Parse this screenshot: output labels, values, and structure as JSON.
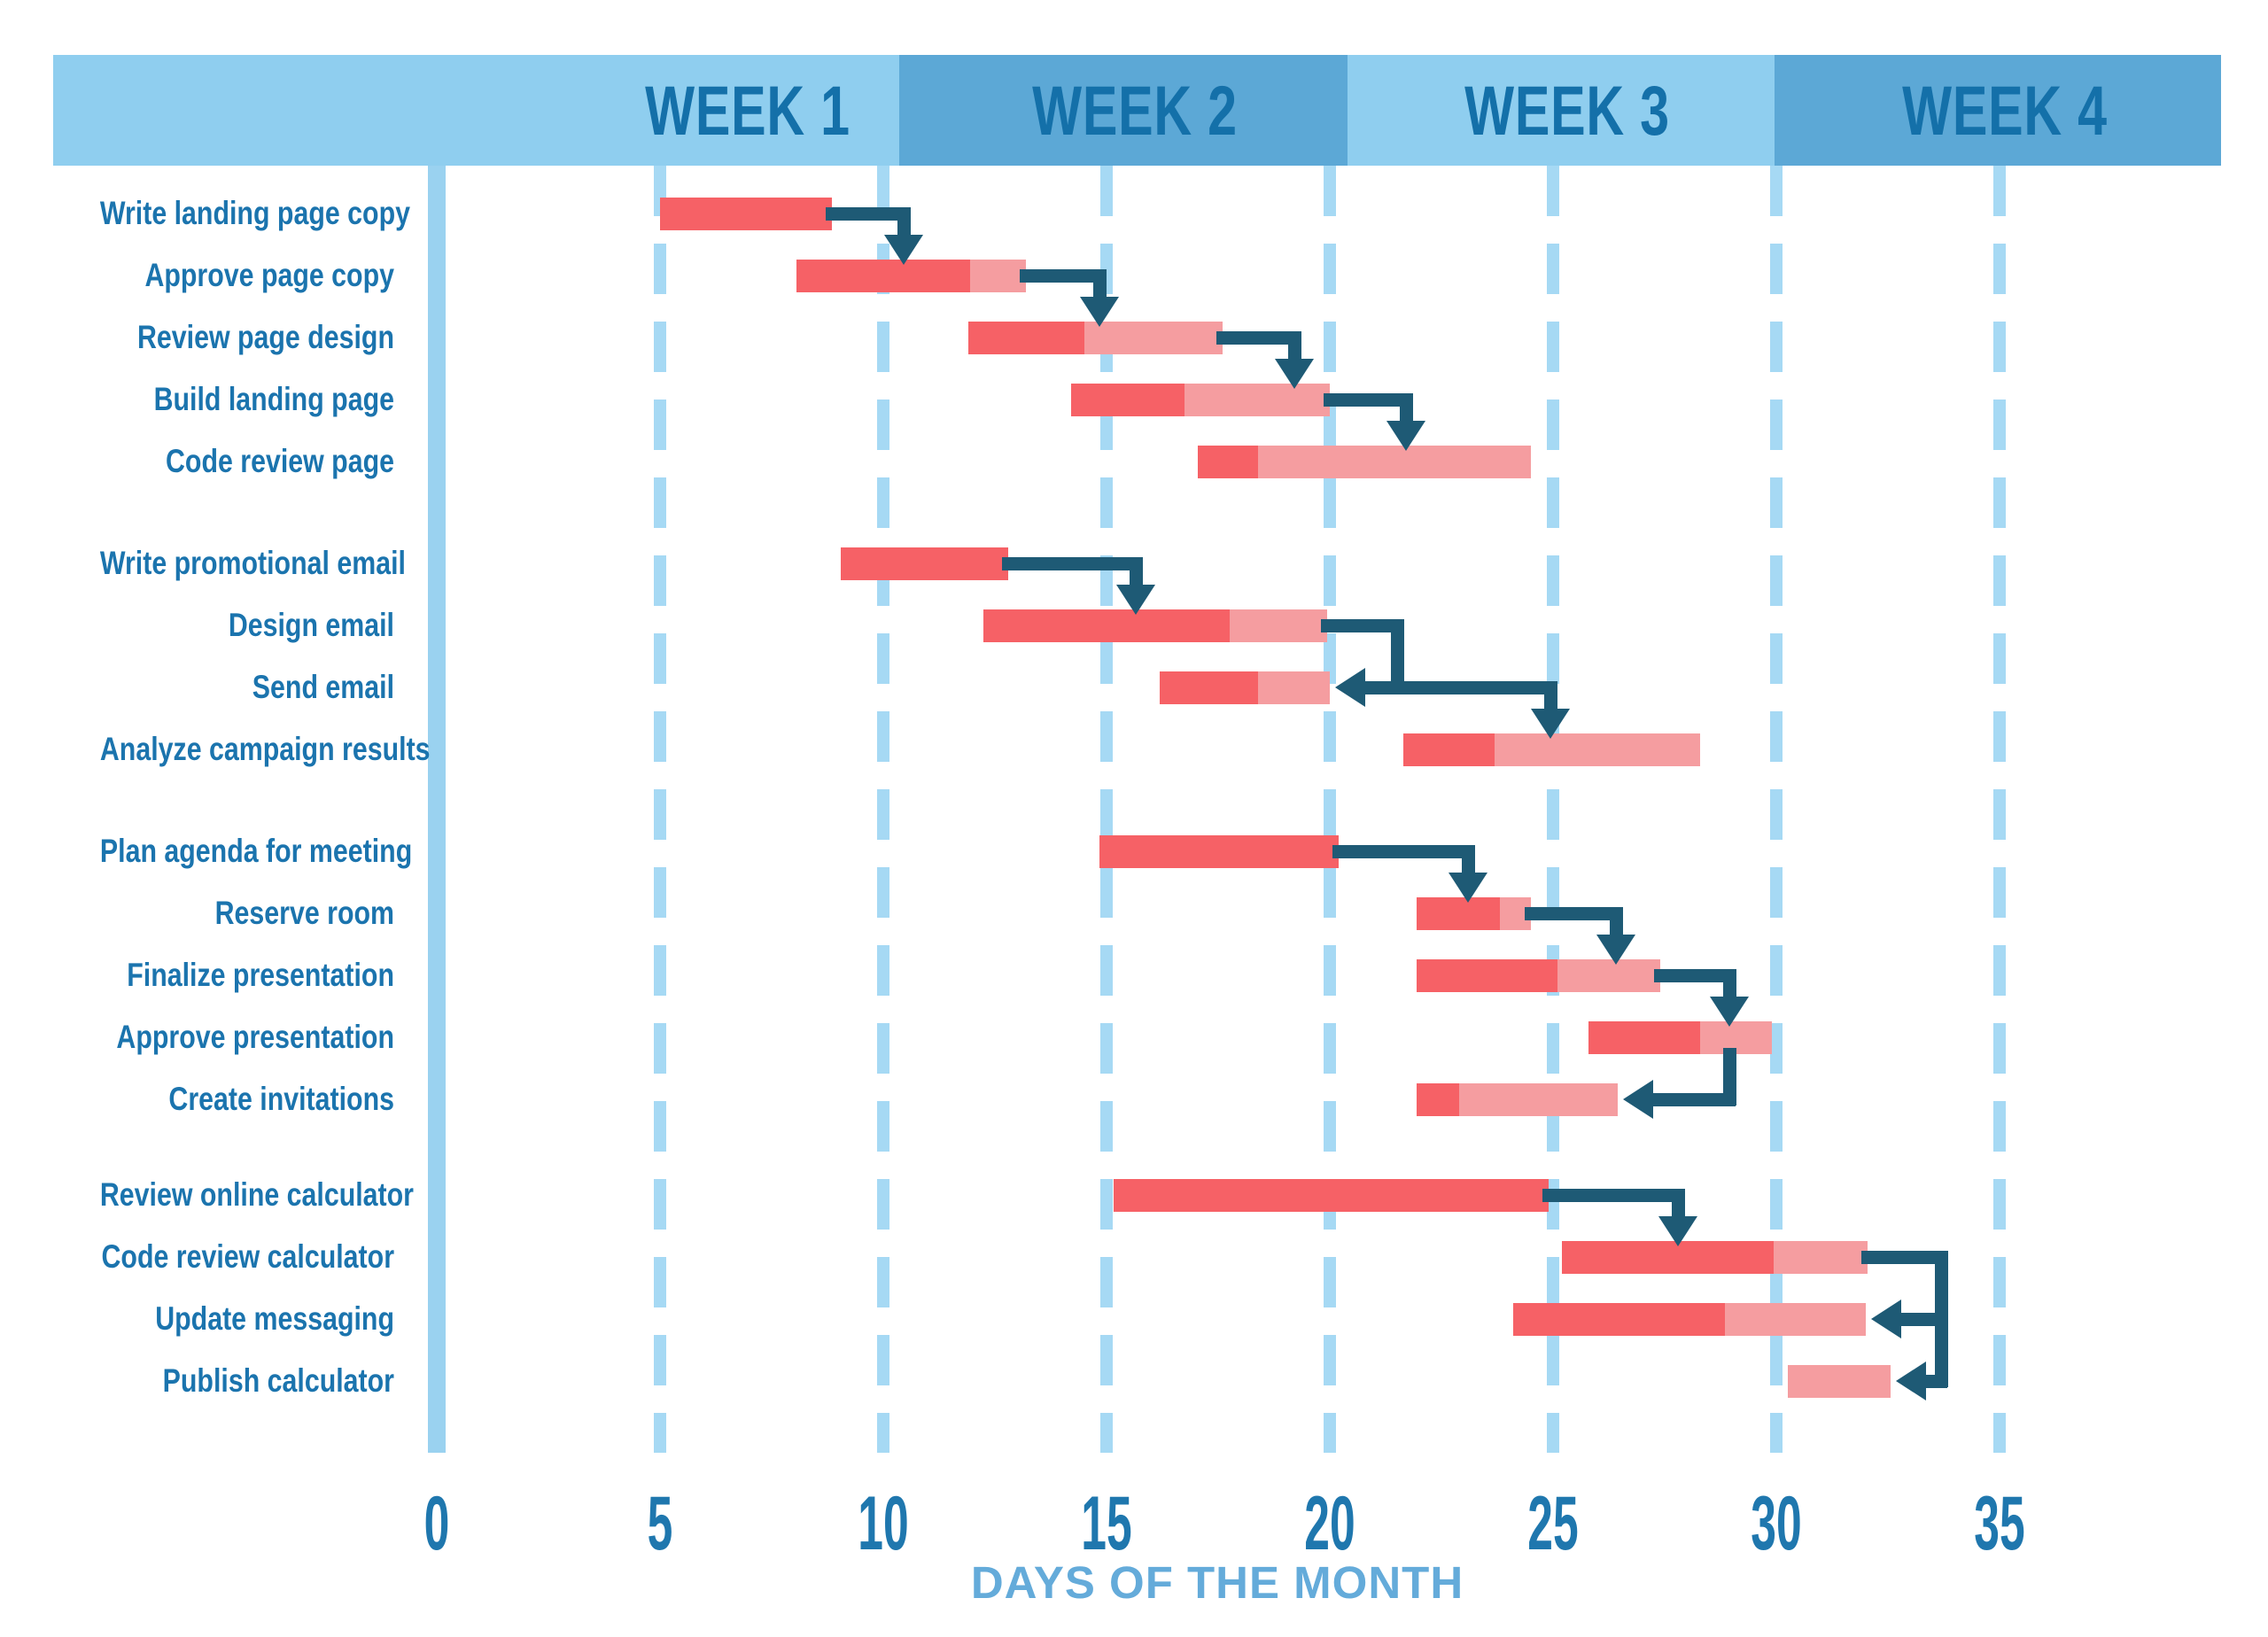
{
  "colors": {
    "background": "#ffffff",
    "header_band_light": "#8fceef",
    "header_band_dark": "#5ca8d6",
    "week_text": "#1470a9",
    "task_text": "#1b74ae",
    "tick_text": "#1f77ae",
    "caption_text": "#64abda",
    "grid_dash": "#a6d9f4",
    "grid_solid": "#9ad2f0",
    "bar_done": "#f66166",
    "bar_remaining": "#f59da0",
    "arrow": "#1e5a75"
  },
  "chart_data": {
    "type": "gantt",
    "title": "",
    "xlabel": "DAYS OF THE MONTH",
    "x_ticks": [
      0,
      5,
      10,
      15,
      20,
      25,
      30,
      35
    ],
    "xlim": [
      0,
      35
    ],
    "grid": "dashed-vertical",
    "week_headers": [
      {
        "label": "WEEK 1",
        "shade": "light"
      },
      {
        "label": "WEEK 2",
        "shade": "dark"
      },
      {
        "label": "WEEK 3",
        "shade": "light"
      },
      {
        "label": "WEEK 4",
        "shade": "dark"
      }
    ],
    "bar_semantics": {
      "solid_red": "completed portion",
      "light_pink": "remaining portion"
    },
    "tasks": [
      {
        "name": "Write landing page copy",
        "group": 0,
        "start": 5.0,
        "end": 8.85,
        "done": 8.85
      },
      {
        "name": "Approve page copy",
        "group": 0,
        "start": 8.05,
        "end": 13.2,
        "done": 11.95
      },
      {
        "name": "Review page design",
        "group": 0,
        "start": 11.9,
        "end": 17.6,
        "done": 14.5
      },
      {
        "name": "Build landing page",
        "group": 0,
        "start": 14.2,
        "end": 20.0,
        "done": 16.75
      },
      {
        "name": "Code review page",
        "group": 0,
        "start": 17.05,
        "end": 24.5,
        "done": 18.4
      },
      {
        "name": "Write promotional email",
        "group": 1,
        "start": 9.05,
        "end": 12.8,
        "done": 12.8
      },
      {
        "name": "Design email",
        "group": 1,
        "start": 12.25,
        "end": 19.95,
        "done": 17.75
      },
      {
        "name": "Send email",
        "group": 1,
        "start": 16.2,
        "end": 20.0,
        "done": 18.4
      },
      {
        "name": "Analyze campaign results",
        "group": 1,
        "start": 21.65,
        "end": 28.3,
        "done": 23.7
      },
      {
        "name": "Plan agenda for meeting",
        "group": 2,
        "start": 14.85,
        "end": 20.2,
        "done": 20.2
      },
      {
        "name": "Reserve room",
        "group": 2,
        "start": 21.95,
        "end": 24.5,
        "done": 23.8
      },
      {
        "name": "Finalize presentation",
        "group": 2,
        "start": 21.95,
        "end": 27.4,
        "done": 25.1
      },
      {
        "name": "Approve presentation",
        "group": 2,
        "start": 25.8,
        "end": 29.9,
        "done": 28.3
      },
      {
        "name": "Create invitations",
        "group": 2,
        "start": 21.95,
        "end": 26.45,
        "done": 22.9
      },
      {
        "name": "Review online calculator",
        "group": 3,
        "start": 15.15,
        "end": 24.9,
        "done": 24.9
      },
      {
        "name": "Code review calculator",
        "group": 3,
        "start": 25.2,
        "end": 32.05,
        "done": 29.95
      },
      {
        "name": "Update messaging",
        "group": 3,
        "start": 24.1,
        "end": 32.0,
        "done": 28.85
      },
      {
        "name": "Publish calculator",
        "group": 3,
        "start": 30.25,
        "end": 32.55,
        "done": 30.25
      }
    ],
    "dependencies": [
      {
        "points": [
          [
            8.85,
            0,
            "c"
          ],
          [
            10.45,
            0,
            "c"
          ],
          [
            10.45,
            1,
            "t"
          ]
        ],
        "arrow": "down"
      },
      {
        "points": [
          [
            13.2,
            1,
            "c"
          ],
          [
            14.85,
            1,
            "c"
          ],
          [
            14.85,
            2,
            "t"
          ]
        ],
        "arrow": "down"
      },
      {
        "points": [
          [
            17.6,
            2,
            "c"
          ],
          [
            19.2,
            2,
            "c"
          ],
          [
            19.2,
            3,
            "t"
          ]
        ],
        "arrow": "down"
      },
      {
        "points": [
          [
            20.0,
            3,
            "c"
          ],
          [
            21.7,
            3,
            "c"
          ],
          [
            21.7,
            4,
            "t"
          ]
        ],
        "arrow": "down"
      },
      {
        "points": [
          [
            12.8,
            5,
            "c"
          ],
          [
            15.65,
            5,
            "c"
          ],
          [
            15.65,
            6,
            "t"
          ]
        ],
        "arrow": "down"
      },
      {
        "points": [
          [
            19.95,
            6,
            "c"
          ],
          [
            21.5,
            6,
            "c"
          ],
          [
            21.5,
            7,
            "c"
          ]
        ],
        "arrow": null
      },
      {
        "points": [
          [
            21.5,
            7,
            "c"
          ],
          [
            20.0,
            7,
            "c"
          ]
        ],
        "arrow": "left"
      },
      {
        "points": [
          [
            21.5,
            7,
            "c"
          ],
          [
            24.95,
            7,
            "c"
          ],
          [
            24.95,
            8,
            "t"
          ]
        ],
        "arrow": "down"
      },
      {
        "points": [
          [
            20.2,
            9,
            "c"
          ],
          [
            23.1,
            9,
            "c"
          ],
          [
            23.1,
            10,
            "t"
          ]
        ],
        "arrow": "down"
      },
      {
        "points": [
          [
            24.5,
            10,
            "c"
          ],
          [
            26.4,
            10,
            "c"
          ],
          [
            26.4,
            11,
            "t"
          ]
        ],
        "arrow": "down"
      },
      {
        "points": [
          [
            27.4,
            11,
            "c"
          ],
          [
            28.95,
            11,
            "c"
          ],
          [
            28.95,
            12,
            "t"
          ]
        ],
        "arrow": "down"
      },
      {
        "points": [
          [
            28.95,
            12,
            "b"
          ],
          [
            28.95,
            13,
            "c"
          ],
          [
            26.45,
            13,
            "c"
          ]
        ],
        "arrow": "left"
      },
      {
        "points": [
          [
            24.9,
            14,
            "c"
          ],
          [
            27.8,
            14,
            "c"
          ],
          [
            27.8,
            15,
            "t"
          ]
        ],
        "arrow": "down"
      },
      {
        "points": [
          [
            32.05,
            15,
            "c"
          ],
          [
            33.7,
            15,
            "c"
          ],
          [
            33.7,
            17,
            "c"
          ]
        ],
        "arrow": null
      },
      {
        "points": [
          [
            33.7,
            16,
            "c"
          ],
          [
            32.0,
            16,
            "c"
          ]
        ],
        "arrow": "left"
      },
      {
        "points": [
          [
            33.7,
            17,
            "c"
          ],
          [
            32.55,
            17,
            "c"
          ]
        ],
        "arrow": "left"
      }
    ]
  }
}
